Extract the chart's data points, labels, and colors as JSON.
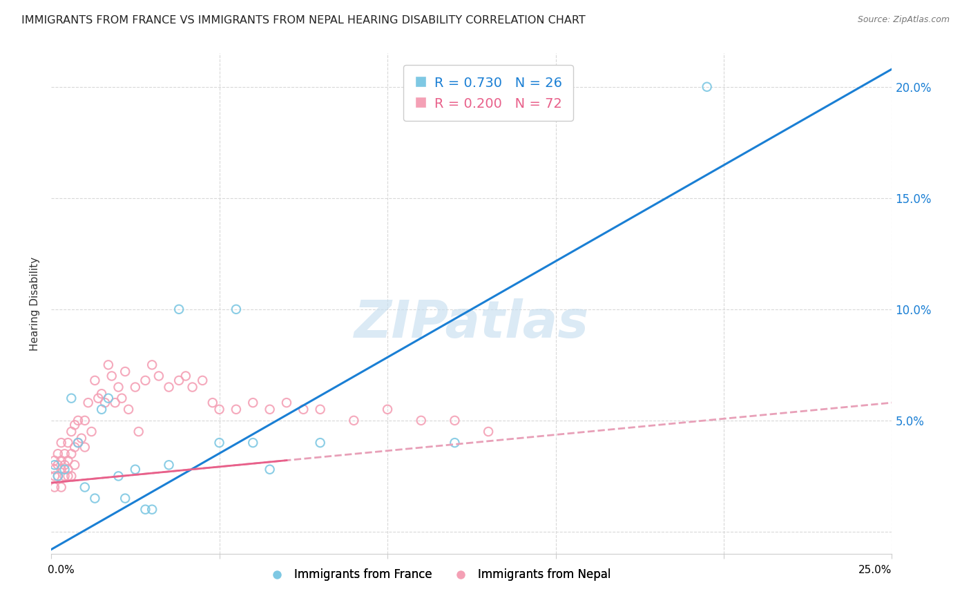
{
  "title": "IMMIGRANTS FROM FRANCE VS IMMIGRANTS FROM NEPAL HEARING DISABILITY CORRELATION CHART",
  "source": "Source: ZipAtlas.com",
  "ylabel": "Hearing Disability",
  "y_ticks": [
    0.0,
    0.05,
    0.1,
    0.15,
    0.2
  ],
  "y_tick_labels": [
    "",
    "5.0%",
    "10.0%",
    "15.0%",
    "20.0%"
  ],
  "x_lim": [
    0.0,
    0.25
  ],
  "y_lim": [
    -0.01,
    0.215
  ],
  "france_color": "#7ec8e3",
  "nepal_color": "#f4a0b5",
  "france_line_color": "#1a7fd4",
  "nepal_line_color": "#e8608a",
  "nepal_line_dash_color": "#e8a0b8",
  "france_R": 0.73,
  "france_N": 26,
  "nepal_R": 0.2,
  "nepal_N": 72,
  "watermark": "ZIPatlas",
  "france_scatter_x": [
    0.001,
    0.002,
    0.004,
    0.006,
    0.008,
    0.01,
    0.013,
    0.015,
    0.017,
    0.02,
    0.022,
    0.025,
    0.028,
    0.03,
    0.035,
    0.038,
    0.05,
    0.055,
    0.06,
    0.065,
    0.08,
    0.12,
    0.195
  ],
  "france_scatter_y": [
    0.03,
    0.025,
    0.028,
    0.06,
    0.04,
    0.02,
    0.015,
    0.055,
    0.06,
    0.025,
    0.015,
    0.028,
    0.01,
    0.01,
    0.03,
    0.1,
    0.04,
    0.1,
    0.04,
    0.028,
    0.04,
    0.04,
    0.2
  ],
  "nepal_scatter_x": [
    0.001,
    0.001,
    0.001,
    0.001,
    0.002,
    0.002,
    0.002,
    0.003,
    0.003,
    0.003,
    0.003,
    0.004,
    0.004,
    0.004,
    0.005,
    0.005,
    0.005,
    0.005,
    0.006,
    0.006,
    0.006,
    0.007,
    0.007,
    0.007,
    0.008,
    0.008,
    0.009,
    0.01,
    0.01,
    0.011,
    0.012,
    0.013,
    0.014,
    0.015,
    0.016,
    0.017,
    0.018,
    0.019,
    0.02,
    0.021,
    0.022,
    0.023,
    0.025,
    0.026,
    0.028,
    0.03,
    0.032,
    0.035,
    0.038,
    0.04,
    0.042,
    0.045,
    0.048,
    0.05,
    0.055,
    0.06,
    0.065,
    0.07,
    0.075,
    0.08,
    0.09,
    0.1,
    0.11,
    0.12,
    0.13
  ],
  "nepal_scatter_y": [
    0.028,
    0.032,
    0.025,
    0.02,
    0.03,
    0.035,
    0.025,
    0.028,
    0.032,
    0.04,
    0.02,
    0.03,
    0.025,
    0.035,
    0.04,
    0.032,
    0.028,
    0.025,
    0.035,
    0.025,
    0.045,
    0.038,
    0.03,
    0.048,
    0.04,
    0.05,
    0.042,
    0.05,
    0.038,
    0.058,
    0.045,
    0.068,
    0.06,
    0.062,
    0.058,
    0.075,
    0.07,
    0.058,
    0.065,
    0.06,
    0.072,
    0.055,
    0.065,
    0.045,
    0.068,
    0.075,
    0.07,
    0.065,
    0.068,
    0.07,
    0.065,
    0.068,
    0.058,
    0.055,
    0.055,
    0.058,
    0.055,
    0.058,
    0.055,
    0.055,
    0.05,
    0.055,
    0.05,
    0.05,
    0.045
  ],
  "france_line_x0": 0.0,
  "france_line_y0": -0.008,
  "france_line_x1": 0.25,
  "france_line_y1": 0.208,
  "nepal_line_x0": 0.0,
  "nepal_line_y0": 0.022,
  "nepal_line_x1": 0.25,
  "nepal_line_y1": 0.058
}
